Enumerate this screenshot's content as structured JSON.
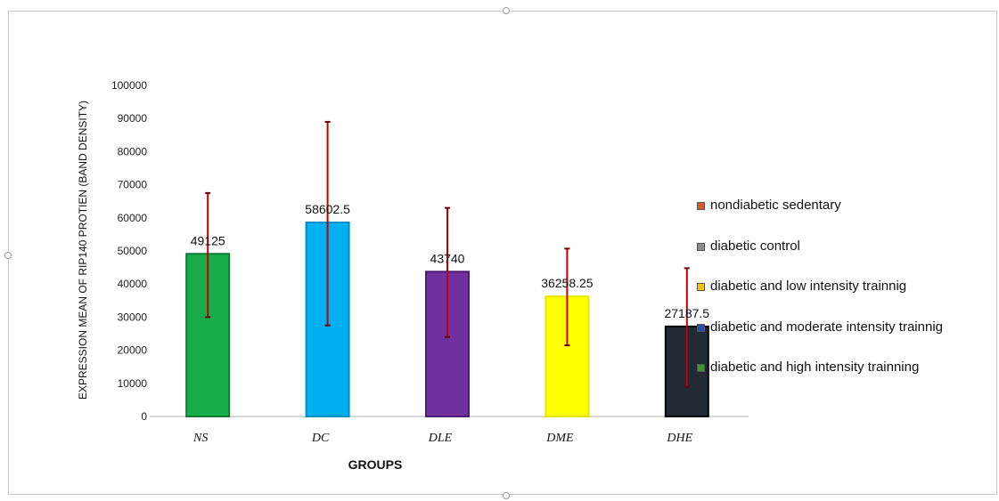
{
  "chart_data": {
    "type": "bar",
    "title": "",
    "xlabel": "GROUPS",
    "ylabel": "EXPRESSION MEAN OF RIP140 PROTIEN (BAND DENSITY)",
    "ylim": [
      0,
      100000
    ],
    "yticks": [
      0,
      10000,
      20000,
      30000,
      40000,
      50000,
      60000,
      70000,
      80000,
      90000,
      100000
    ],
    "ytick_labels": [
      "0",
      "10000",
      "20000",
      "30000",
      "40000",
      "50000",
      "60000",
      "70000",
      "80000",
      "90000",
      "100000"
    ],
    "categories": [
      "NS",
      "DC",
      "DLE",
      "DME",
      "DHE"
    ],
    "values": [
      49125,
      58602.5,
      43740,
      36258.25,
      27187.5
    ],
    "data_labels": [
      "49125",
      "58602.5",
      "43740",
      "36258.25",
      "27187.5"
    ],
    "error_low": [
      30000,
      27500,
      24000,
      21500,
      9000
    ],
    "error_high": [
      67500,
      89000,
      63000,
      50700,
      44800
    ],
    "bar_colors": [
      "#18ad4b",
      "#00b0f0",
      "#7030a0",
      "#ffff00",
      "#222a35"
    ],
    "bar_edge_colors": [
      "#0e7a34",
      "#0090c8",
      "#4a1e70",
      "#e6e600",
      "#000000"
    ],
    "error_color": "#c00000",
    "grid": false,
    "legend_position": "right",
    "legend": [
      {
        "label": "nondiabetic sedentary",
        "color": "#e0581c"
      },
      {
        "label": "diabetic control",
        "color": "#8c8c8c"
      },
      {
        "label": "diabetic and low intensity trainnig",
        "color": "#ffc000"
      },
      {
        "label": "diabetic and moderate intensity trainnig",
        "color": "#1f4fbf"
      },
      {
        "label": "diabetic and high intensity trainning",
        "color": "#3a9a2a"
      }
    ]
  }
}
